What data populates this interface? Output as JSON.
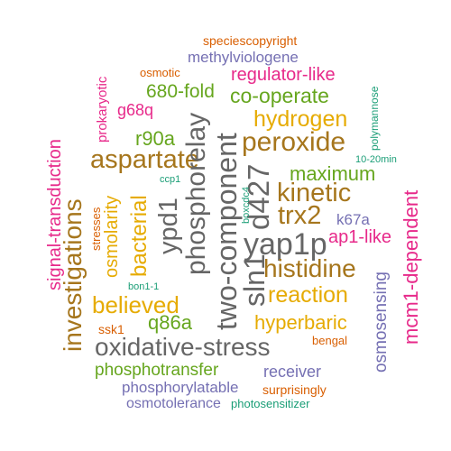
{
  "colors": {
    "orange": "#d95f02",
    "purple": "#7570b3",
    "magenta": "#e7298a",
    "green": "#66a61e",
    "gold": "#e6ab02",
    "brown": "#a6761d",
    "gray": "#666666",
    "teal": "#1b9e77"
  },
  "words": [
    {
      "id": "speciescopyright",
      "text": "speciescopyright",
      "color": "orange"
    },
    {
      "id": "methylviologene",
      "text": "methylviologene",
      "color": "purple"
    },
    {
      "id": "prokaryotic",
      "text": "prokaryotic",
      "color": "magenta"
    },
    {
      "id": "osmotic",
      "text": "osmotic",
      "color": "orange"
    },
    {
      "id": "regulator-like",
      "text": "regulator-like",
      "color": "magenta"
    },
    {
      "id": "polymannose",
      "text": "polymannose",
      "color": "teal"
    },
    {
      "id": "680-fold",
      "text": "680-fold",
      "color": "green"
    },
    {
      "id": "co-operate",
      "text": "co-operate",
      "color": "green"
    },
    {
      "id": "g68q",
      "text": "g68q",
      "color": "magenta"
    },
    {
      "id": "phosphorelay",
      "text": "phosphorelay",
      "color": "gray"
    },
    {
      "id": "hydrogen",
      "text": "hydrogen",
      "color": "gold"
    },
    {
      "id": "signal-transduction",
      "text": "signal-transduction",
      "color": "magenta"
    },
    {
      "id": "r90a",
      "text": "r90a",
      "color": "green"
    },
    {
      "id": "two-component",
      "text": "two-component",
      "color": "gray"
    },
    {
      "id": "d427",
      "text": "d427",
      "color": "gray"
    },
    {
      "id": "peroxide",
      "text": "peroxide",
      "color": "brown"
    },
    {
      "id": "10-20min",
      "text": "10-20min",
      "color": "teal"
    },
    {
      "id": "aspartate",
      "text": "aspartate",
      "color": "brown"
    },
    {
      "id": "maximum",
      "text": "maximum",
      "color": "green"
    },
    {
      "id": "ccp1",
      "text": "ccp1",
      "color": "teal"
    },
    {
      "id": "boxcdc4",
      "text": "boxcdc4",
      "color": "teal"
    },
    {
      "id": "stresses",
      "text": "stresses",
      "color": "orange"
    },
    {
      "id": "osmolarity",
      "text": "osmolarity",
      "color": "gold"
    },
    {
      "id": "bacterial",
      "text": "bacterial",
      "color": "gold"
    },
    {
      "id": "ypd1",
      "text": "ypd1",
      "color": "gray"
    },
    {
      "id": "kinetic",
      "text": "kinetic",
      "color": "brown"
    },
    {
      "id": "mcm1-dependent",
      "text": "mcm1-dependent",
      "color": "magenta"
    },
    {
      "id": "investigations",
      "text": "investigations",
      "color": "brown"
    },
    {
      "id": "trx2",
      "text": "trx2",
      "color": "brown"
    },
    {
      "id": "k67a",
      "text": "k67a",
      "color": "purple"
    },
    {
      "id": "yap1p",
      "text": "yap1p",
      "color": "gray"
    },
    {
      "id": "ap1-like",
      "text": "ap1-like",
      "color": "magenta"
    },
    {
      "id": "sln1",
      "text": "sln1",
      "color": "gray"
    },
    {
      "id": "histidine",
      "text": "histidine",
      "color": "brown"
    },
    {
      "id": "bon1-1",
      "text": "bon1-1",
      "color": "teal"
    },
    {
      "id": "osmosensing",
      "text": "osmosensing",
      "color": "purple"
    },
    {
      "id": "reaction",
      "text": "reaction",
      "color": "gold"
    },
    {
      "id": "believed",
      "text": "believed",
      "color": "gold"
    },
    {
      "id": "q86a",
      "text": "q86a",
      "color": "green"
    },
    {
      "id": "hyperbaric",
      "text": "hyperbaric",
      "color": "gold"
    },
    {
      "id": "ssk1",
      "text": "ssk1",
      "color": "orange"
    },
    {
      "id": "bengal",
      "text": "bengal",
      "color": "orange"
    },
    {
      "id": "oxidative-stress",
      "text": "oxidative-stress",
      "color": "gray"
    },
    {
      "id": "phosphotransfer",
      "text": "phosphotransfer",
      "color": "green"
    },
    {
      "id": "receiver",
      "text": "receiver",
      "color": "purple"
    },
    {
      "id": "phosphorylatable",
      "text": "phosphorylatable",
      "color": "purple"
    },
    {
      "id": "surprisingly",
      "text": "surprisingly",
      "color": "orange"
    },
    {
      "id": "osmotolerance",
      "text": "osmotolerance",
      "color": "purple"
    },
    {
      "id": "photosensitizer",
      "text": "photosensitizer",
      "color": "teal"
    }
  ]
}
